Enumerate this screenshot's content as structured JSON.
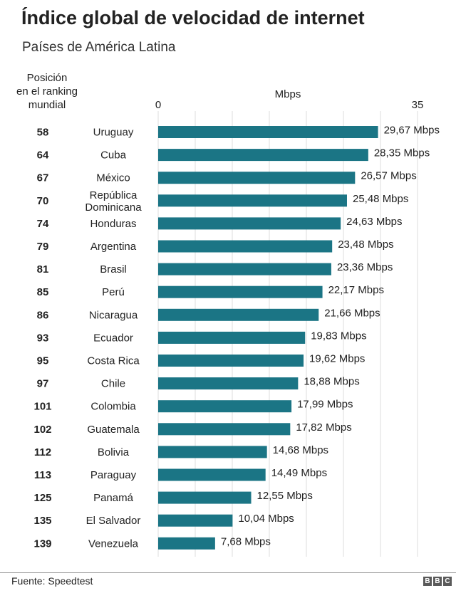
{
  "title": "Índice global de velocidad de internet",
  "subtitle": "Países de América Latina",
  "rank_header": "Posición\nen el ranking\nmundial",
  "source": "Fuente: Speedtest",
  "logo_letters": [
    "B",
    "B",
    "C"
  ],
  "chart_data": {
    "type": "bar",
    "orientation": "horizontal",
    "xlabel": "Mbps",
    "xlim": [
      0,
      35
    ],
    "x_ticks": [
      "0",
      "35"
    ],
    "grid": true,
    "bar_color": "#1b7585",
    "categories": [
      "Uruguay",
      "Cuba",
      "México",
      "República Dominicana",
      "Honduras",
      "Argentina",
      "Brasil",
      "Perú",
      "Nicaragua",
      "Ecuador",
      "Costa Rica",
      "Chile",
      "Colombia",
      "Guatemala",
      "Bolivia",
      "Paraguay",
      "Panamá",
      "El Salvador",
      "Venezuela"
    ],
    "ranks": [
      "58",
      "64",
      "67",
      "70",
      "74",
      "79",
      "81",
      "85",
      "86",
      "93",
      "95",
      "97",
      "101",
      "102",
      "112",
      "113",
      "125",
      "135",
      "139"
    ],
    "values": [
      29.67,
      28.35,
      26.57,
      25.48,
      24.63,
      23.48,
      23.36,
      22.17,
      21.66,
      19.83,
      19.62,
      18.88,
      17.99,
      17.82,
      14.68,
      14.49,
      12.55,
      10.04,
      7.68
    ],
    "data_labels": [
      "29,67 Mbps",
      "28,35 Mbps",
      "26,57 Mbps",
      "25,48 Mbps",
      "24,63 Mbps",
      "23,48 Mbps",
      "23,36 Mbps",
      "22,17 Mbps",
      "21,66 Mbps",
      "19,83 Mbps",
      "19,62 Mbps",
      "18,88 Mbps",
      "17,99 Mbps",
      "17,82 Mbps",
      "14,68 Mbps",
      "14,49 Mbps",
      "12,55 Mbps",
      "10,04 Mbps",
      "7,68 Mbps"
    ]
  }
}
